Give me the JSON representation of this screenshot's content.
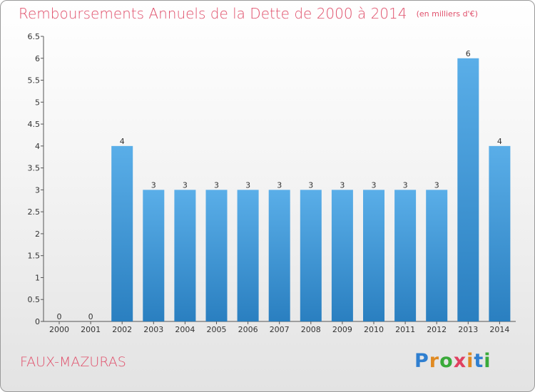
{
  "header": {
    "title": "Remboursements Annuels de la Dette de 2000 à 2014",
    "unit_note": "(en milliers d'€)"
  },
  "footer": {
    "place_name": "FAUX-MAZURAS",
    "logo_text": "Proxiti"
  },
  "colors": {
    "title": "#e0506b",
    "bar_top": "#5aaee8",
    "bar_bottom": "#2a7fc0",
    "logo_letters": [
      "#2f7fd0",
      "#e08a22",
      "#3aaa3a",
      "#e04060",
      "#e08a22",
      "#2f7fd0",
      "#3aaa3a"
    ]
  },
  "chart_data": {
    "type": "bar",
    "categories": [
      "2000",
      "2001",
      "2002",
      "2003",
      "2004",
      "2005",
      "2006",
      "2007",
      "2008",
      "2009",
      "2010",
      "2011",
      "2012",
      "2013",
      "2014"
    ],
    "values": [
      0,
      0,
      4,
      3,
      3,
      3,
      3,
      3,
      3,
      3,
      3,
      3,
      3,
      6,
      4
    ],
    "data_labels": [
      "0",
      "0",
      "4",
      "3",
      "3",
      "3",
      "3",
      "3",
      "3",
      "3",
      "3",
      "3",
      "3",
      "6",
      "4"
    ],
    "y_ticks": [
      "0",
      "0.5",
      "1",
      "1.5",
      "2",
      "2.5",
      "3",
      "3.5",
      "4",
      "4.5",
      "5",
      "5.5",
      "6",
      "6.5"
    ],
    "ylim": [
      0,
      6.5
    ],
    "title": "Remboursements Annuels de la Dette de 2000 à 2014",
    "xlabel": "",
    "ylabel": "",
    "grid": false,
    "legend": "none"
  }
}
